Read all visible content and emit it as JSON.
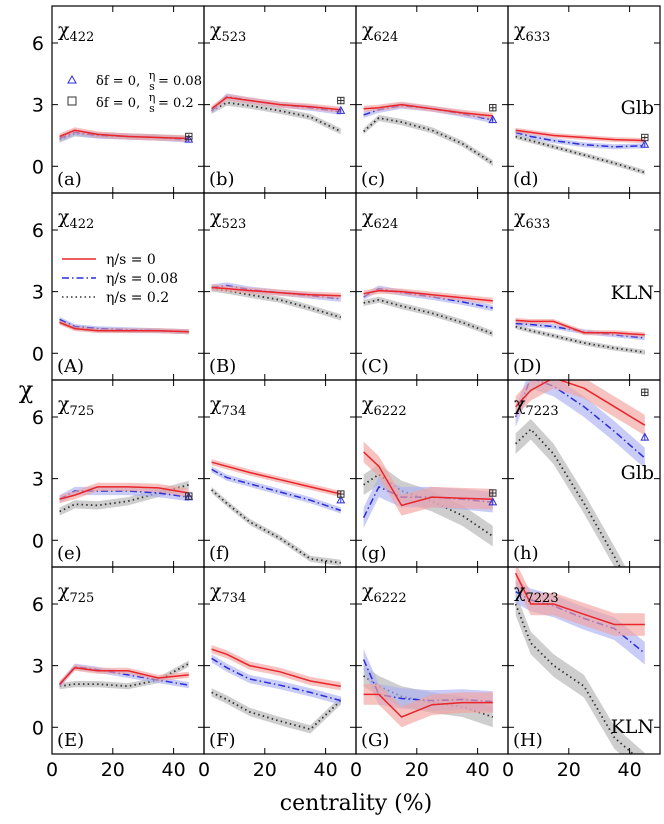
{
  "chart_data": {
    "type": "line",
    "xlabel": "centrality (%)",
    "ylabel": "χ",
    "xlim": [
      0,
      50
    ],
    "ylim": [
      -1.3,
      7.8
    ],
    "xticks": [
      0,
      20,
      40
    ],
    "yticks": [
      0,
      3,
      6
    ],
    "xtick_labels": [
      "0",
      "20",
      "40"
    ],
    "ytick_labels": [
      "0",
      "3",
      "6"
    ],
    "colors": {
      "eta0": "#e8262b",
      "eta008": "#2c2cd8",
      "eta02": "#333333",
      "band_eta0": "#f3a3a0",
      "band_eta008": "#aab0f2",
      "band_eta02": "#b3b3b3"
    },
    "legend_lines": [
      {
        "label": "η/s = 0",
        "style": "solid",
        "color": "#e8262b"
      },
      {
        "label": "η/s = 0.08",
        "style": "dashdot",
        "color": "#2c2cd8"
      },
      {
        "label": "η/s = 0.2",
        "style": "dotted",
        "color": "#333333"
      }
    ],
    "legend_markers": [
      {
        "label": "δf = 0,",
        "eta_frac": "η",
        "s_frac": "s",
        "value": "= 0.08",
        "marker": "triangle",
        "color": "#2c2cd8"
      },
      {
        "label": "δf = 0,",
        "eta_frac": "η",
        "s_frac": "s",
        "value": "= 0.2",
        "marker": "square",
        "color": "#333333"
      }
    ],
    "x": [
      2.5,
      7.5,
      15,
      25,
      35,
      45
    ],
    "panels": [
      {
        "id": "a",
        "letter": "(a)",
        "observable": "χ",
        "sub": "422",
        "label": "",
        "series": {
          "eta0": [
            1.45,
            1.75,
            1.55,
            1.45,
            1.4,
            1.35
          ],
          "eta008": [
            1.35,
            1.65,
            1.5,
            1.45,
            1.4,
            1.3
          ],
          "eta02": [
            1.3,
            1.6,
            1.5,
            1.45,
            1.4,
            1.35
          ]
        },
        "band": 0.15,
        "markers": {
          "triangle": {
            "x": 45,
            "y": 1.3,
            "err": 0.1
          },
          "square": {
            "x": 45,
            "y": 1.45,
            "err": 0.1
          }
        }
      },
      {
        "id": "b",
        "letter": "(b)",
        "observable": "χ",
        "sub": "523",
        "label": "",
        "series": {
          "eta0": [
            2.8,
            3.35,
            3.2,
            3.0,
            2.9,
            2.75
          ],
          "eta008": [
            2.7,
            3.4,
            3.2,
            3.0,
            2.85,
            2.65
          ],
          "eta02": [
            2.7,
            3.1,
            2.95,
            2.7,
            2.4,
            1.7
          ]
        },
        "band": 0.15,
        "markers": {
          "triangle": {
            "x": 45,
            "y": 2.7,
            "err": 0.1
          },
          "square": {
            "x": 45,
            "y": 3.2,
            "err": 0.15
          }
        }
      },
      {
        "id": "c",
        "letter": "(c)",
        "observable": "χ",
        "sub": "624",
        "label": "",
        "series": {
          "eta0": [
            2.8,
            2.85,
            3.0,
            2.8,
            2.6,
            2.45
          ],
          "eta008": [
            2.5,
            2.75,
            2.95,
            2.8,
            2.55,
            2.25
          ],
          "eta02": [
            1.7,
            2.35,
            2.15,
            1.75,
            1.1,
            0.15
          ]
        },
        "band": 0.15,
        "markers": {
          "triangle": {
            "x": 45,
            "y": 2.25,
            "err": 0.12
          },
          "square": {
            "x": 45,
            "y": 2.85,
            "err": 0.15
          }
        }
      },
      {
        "id": "d",
        "letter": "(d)",
        "observable": "χ",
        "sub": "633",
        "label": "Glb",
        "series": {
          "eta0": [
            1.75,
            1.65,
            1.5,
            1.4,
            1.3,
            1.25
          ],
          "eta008": [
            1.65,
            1.45,
            1.25,
            1.05,
            0.95,
            1.0
          ],
          "eta02": [
            1.45,
            1.25,
            0.95,
            0.55,
            0.15,
            -0.3
          ]
        },
        "band": 0.12,
        "markers": {
          "triangle": {
            "x": 45,
            "y": 1.05,
            "err": 0.1
          },
          "square": {
            "x": 45,
            "y": 1.4,
            "err": 0.1
          }
        }
      },
      {
        "id": "A",
        "letter": "(A)",
        "observable": "χ",
        "sub": "422",
        "label": "",
        "series": {
          "eta0": [
            1.5,
            1.2,
            1.1,
            1.1,
            1.1,
            1.05
          ],
          "eta008": [
            1.65,
            1.3,
            1.2,
            1.15,
            1.1,
            1.05
          ],
          "eta02": [
            1.55,
            1.25,
            1.15,
            1.1,
            1.1,
            1.05
          ]
        },
        "band": 0.12,
        "markers": null
      },
      {
        "id": "B",
        "letter": "(B)",
        "observable": "χ",
        "sub": "523",
        "label": "",
        "series": {
          "eta0": [
            3.2,
            3.15,
            3.05,
            2.95,
            2.85,
            2.8
          ],
          "eta008": [
            3.2,
            3.3,
            3.1,
            2.95,
            2.8,
            2.65
          ],
          "eta02": [
            3.15,
            3.05,
            2.85,
            2.6,
            2.2,
            1.75
          ]
        },
        "band": 0.15,
        "markers": null
      },
      {
        "id": "C",
        "letter": "(C)",
        "observable": "χ",
        "sub": "624",
        "label": "",
        "series": {
          "eta0": [
            2.9,
            3.05,
            3.0,
            2.85,
            2.7,
            2.55
          ],
          "eta008": [
            2.75,
            3.15,
            2.95,
            2.75,
            2.5,
            2.2
          ],
          "eta02": [
            2.45,
            2.6,
            2.3,
            1.95,
            1.5,
            0.95
          ]
        },
        "band": 0.15,
        "markers": null
      },
      {
        "id": "D",
        "letter": "(D)",
        "observable": "χ",
        "sub": "633",
        "label": "KLN",
        "series": {
          "eta0": [
            1.6,
            1.55,
            1.55,
            1.0,
            1.0,
            0.9
          ],
          "eta008": [
            1.45,
            1.4,
            1.3,
            1.05,
            0.9,
            0.75
          ],
          "eta02": [
            1.3,
            1.1,
            0.85,
            0.5,
            0.25,
            0.05
          ]
        },
        "band": 0.12,
        "markers": null
      },
      {
        "id": "e",
        "letter": "(e)",
        "observable": "χ",
        "sub": "725",
        "label": "",
        "series": {
          "eta0": [
            2.0,
            2.2,
            2.6,
            2.6,
            2.55,
            2.3
          ],
          "eta008": [
            2.0,
            2.4,
            2.4,
            2.4,
            2.3,
            2.1
          ],
          "eta02": [
            1.4,
            1.75,
            1.7,
            1.9,
            2.3,
            2.7
          ]
        },
        "band": 0.2,
        "markers": {
          "triangle": {
            "x": 45,
            "y": 2.1,
            "err": 0.12
          },
          "square": {
            "x": 45,
            "y": 2.15,
            "err": 0.12
          }
        }
      },
      {
        "id": "f",
        "letter": "(f)",
        "observable": "χ",
        "sub": "734",
        "label": "",
        "series": {
          "eta0": [
            3.8,
            3.6,
            3.3,
            2.95,
            2.6,
            2.25
          ],
          "eta008": [
            3.45,
            3.05,
            2.75,
            2.35,
            1.95,
            1.45
          ],
          "eta02": [
            2.45,
            1.8,
            0.9,
            0.1,
            -0.9,
            -1.1
          ]
        },
        "band": 0.15,
        "markers": {
          "triangle": {
            "x": 45,
            "y": 1.95,
            "err": 0.12
          },
          "square": {
            "x": 45,
            "y": 2.25,
            "err": 0.15
          }
        }
      },
      {
        "id": "g",
        "letter": "(g)",
        "observable": "χ",
        "sub": "6222",
        "label": "",
        "series": {
          "eta0": [
            4.3,
            3.6,
            1.7,
            2.1,
            2.05,
            2.0
          ],
          "eta008": [
            1.1,
            2.6,
            2.1,
            2.1,
            2.0,
            1.85
          ],
          "eta02": [
            2.7,
            3.2,
            2.4,
            1.9,
            1.2,
            0.2
          ]
        },
        "band": 0.5,
        "markers": {
          "triangle": {
            "x": 45,
            "y": 1.85,
            "err": 0.12
          },
          "square": {
            "x": 45,
            "y": 2.3,
            "err": 0.15
          }
        }
      },
      {
        "id": "h",
        "letter": "(h)",
        "observable": "χ",
        "sub": "7223",
        "label": "Glb",
        "series": {
          "eta0": [
            6.5,
            7.3,
            7.9,
            7.4,
            6.5,
            5.6
          ],
          "eta008": [
            6.0,
            7.9,
            7.5,
            6.5,
            5.3,
            4.0
          ],
          "eta02": [
            4.7,
            5.4,
            4.2,
            1.8,
            -0.8,
            -3.5
          ]
        },
        "band": 0.5,
        "markers": {
          "triangle": {
            "x": 45,
            "y": 5.0,
            "err": 0.15
          },
          "square": {
            "x": 45,
            "y": 7.2,
            "err": 0.2
          }
        }
      },
      {
        "id": "E",
        "letter": "(E)",
        "observable": "χ",
        "sub": "725",
        "label": "",
        "series": {
          "eta0": [
            2.1,
            2.9,
            2.75,
            2.75,
            2.4,
            2.55
          ],
          "eta008": [
            2.05,
            2.95,
            2.8,
            2.55,
            2.3,
            2.05
          ],
          "eta02": [
            2.0,
            2.1,
            2.1,
            2.0,
            2.3,
            3.1
          ]
        },
        "band": 0.15,
        "markers": null
      },
      {
        "id": "F",
        "letter": "(F)",
        "observable": "χ",
        "sub": "734",
        "label": "",
        "series": {
          "eta0": [
            3.8,
            3.55,
            3.0,
            2.7,
            2.25,
            2.0
          ],
          "eta008": [
            3.35,
            2.9,
            2.35,
            2.05,
            1.7,
            1.3
          ],
          "eta02": [
            1.7,
            1.35,
            0.75,
            0.3,
            -0.1,
            1.3
          ]
        },
        "band": 0.2,
        "markers": null
      },
      {
        "id": "G",
        "letter": "(G)",
        "observable": "χ",
        "sub": "6222",
        "label": "",
        "series": {
          "eta0": [
            1.6,
            1.6,
            0.5,
            1.1,
            1.2,
            1.2
          ],
          "eta008": [
            3.3,
            1.6,
            1.4,
            1.3,
            1.35,
            1.25
          ],
          "eta02": [
            2.5,
            2.0,
            1.5,
            1.2,
            1.0,
            0.5
          ]
        },
        "band": 0.5,
        "markers": null
      },
      {
        "id": "H",
        "letter": "(H)",
        "observable": "χ",
        "sub": "7223",
        "label": "KLN",
        "series": {
          "eta0": [
            7.5,
            6.0,
            6.0,
            5.5,
            5.0,
            5.0
          ],
          "eta008": [
            6.6,
            6.2,
            5.9,
            5.3,
            4.8,
            3.6
          ],
          "eta02": [
            6.0,
            4.1,
            3.0,
            2.0,
            -0.5,
            -1.8
          ]
        },
        "band": 0.55,
        "markers": null
      }
    ]
  }
}
